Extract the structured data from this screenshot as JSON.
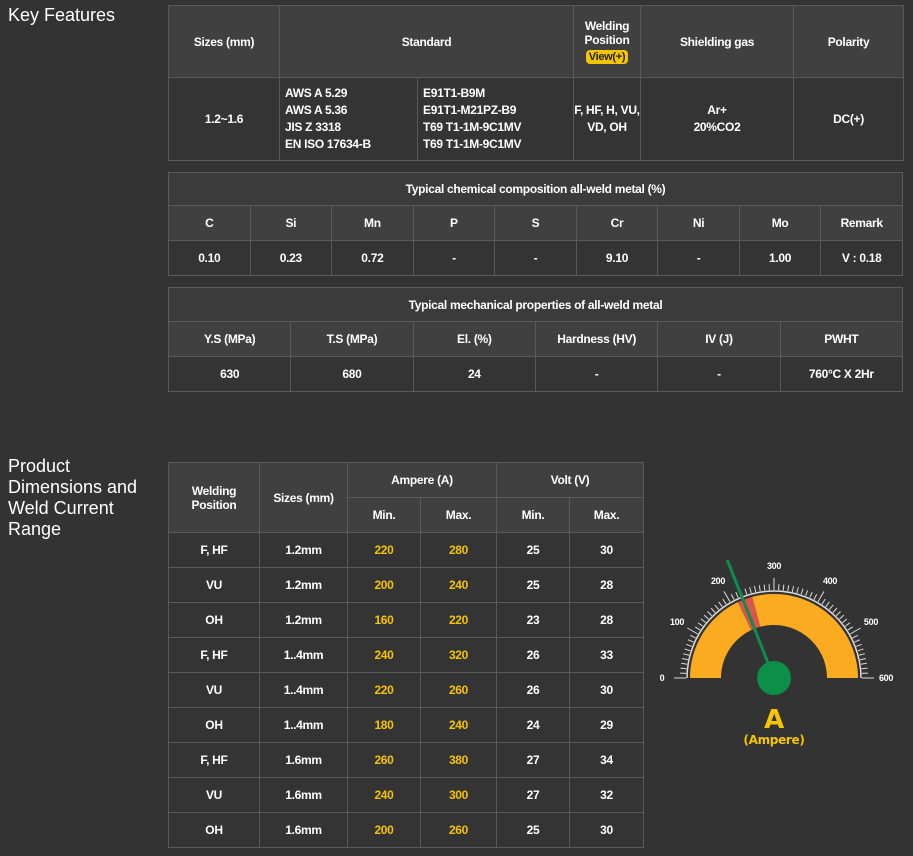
{
  "key_features": {
    "title": "Key Features",
    "headers": {
      "sizes": "Sizes (mm)",
      "standard": "Standard",
      "welding_position": "Welding Position",
      "view_button": "View(+)",
      "shielding_gas": "Shielding gas",
      "polarity": "Polarity"
    },
    "row": {
      "sizes": "1.2~1.6",
      "standard_a": [
        "AWS A 5.29",
        "AWS A 5.36",
        "JIS Z 3318",
        "EN ISO 17634-B"
      ],
      "standard_b": [
        "E91T1-B9M",
        "E91T1-M21PZ-B9",
        "T69 T1-1M-9C1MV",
        "T69 T1-1M-9C1MV"
      ],
      "welding_position": [
        "F, HF, H, VU,",
        "VD, OH"
      ],
      "shielding_gas": [
        "Ar+",
        "20%CO2"
      ],
      "polarity": "DC(+)"
    }
  },
  "chemical": {
    "caption": "Typical chemical composition all-weld metal (%)",
    "headers": [
      "C",
      "Si",
      "Mn",
      "P",
      "S",
      "Cr",
      "Ni",
      "Mo",
      "Remark"
    ],
    "values": [
      "0.10",
      "0.23",
      "0.72",
      "-",
      "-",
      "9.10",
      "-",
      "1.00",
      "V : 0.18"
    ]
  },
  "mechanical": {
    "caption": "Typical mechanical properties of all-weld metal",
    "headers": [
      "Y.S (MPa)",
      "T.S (MPa)",
      "El. (%)",
      "Hardness (HV)",
      "IV (J)",
      "PWHT"
    ],
    "values": [
      "630",
      "680",
      "24",
      "-",
      "-",
      "760°C X 2Hr"
    ]
  },
  "dimensions": {
    "title": [
      "Product",
      "Dimensions and",
      "Weld Current",
      "Range"
    ],
    "headers": {
      "welding_position": [
        "Welding",
        "Position"
      ],
      "sizes": "Sizes (mm)",
      "ampere": "Ampere (A)",
      "volt": "Volt (V)",
      "min": "Min.",
      "max": "Max."
    },
    "rows": [
      [
        "F, HF",
        "1.2mm",
        "220",
        "280",
        "25",
        "30"
      ],
      [
        "VU",
        "1.2mm",
        "200",
        "240",
        "25",
        "28"
      ],
      [
        "OH",
        "1.2mm",
        "160",
        "220",
        "23",
        "28"
      ],
      [
        "F, HF",
        "1..4mm",
        "240",
        "320",
        "26",
        "33"
      ],
      [
        "VU",
        "1..4mm",
        "220",
        "260",
        "26",
        "30"
      ],
      [
        "OH",
        "1..4mm",
        "180",
        "240",
        "24",
        "29"
      ],
      [
        "F, HF",
        "1.6mm",
        "260",
        "380",
        "27",
        "34"
      ],
      [
        "VU",
        "1.6mm",
        "240",
        "300",
        "27",
        "32"
      ],
      [
        "OH",
        "1.6mm",
        "200",
        "260",
        "25",
        "30"
      ]
    ]
  },
  "gauge": {
    "min": 0,
    "max": 600,
    "labels": [
      "0",
      "100",
      "200",
      "300",
      "400",
      "500",
      "600"
    ],
    "highlight_range": [
      215,
      250
    ],
    "needle_value": 228,
    "unit_symbol": "A",
    "unit_name": "(Ampere)",
    "colors": {
      "band": "#fbab1f",
      "highlight": "#d9534f",
      "needle": "#0c8f48",
      "text": "#f5c400"
    }
  }
}
